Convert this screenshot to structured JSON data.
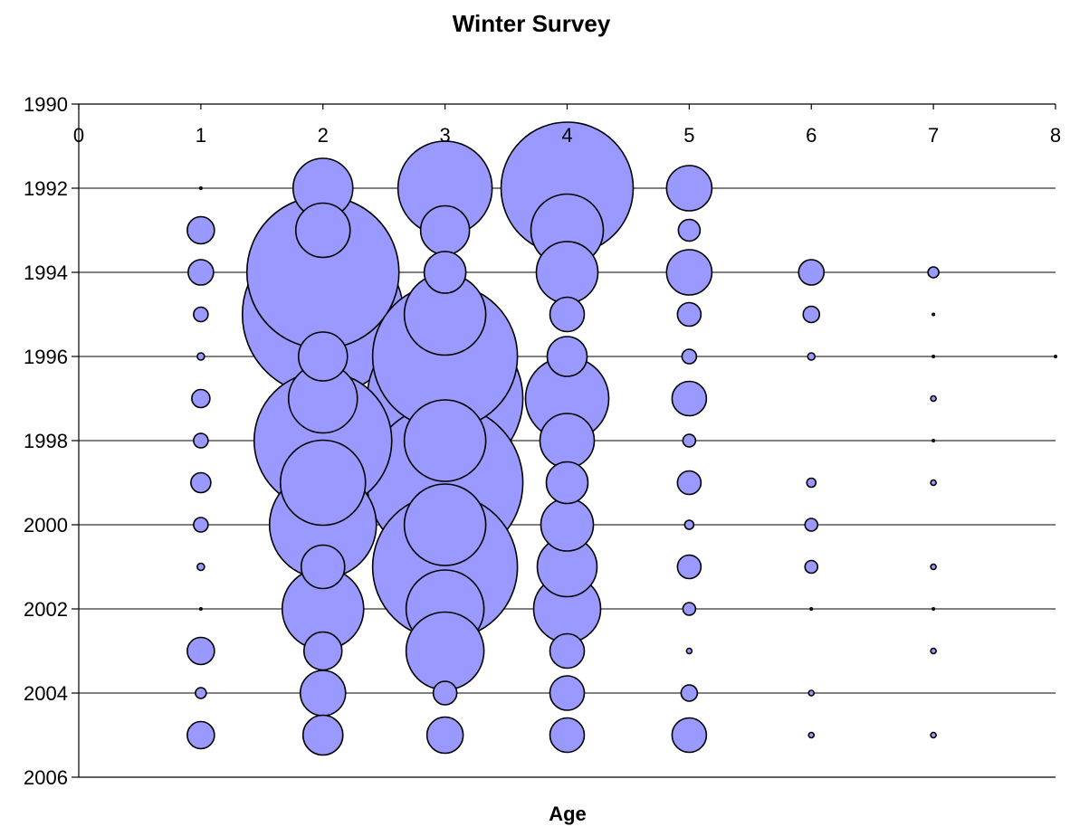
{
  "chart_data": {
    "type": "bubble",
    "title": "Winter Survey",
    "xlabel": "Age",
    "ylabel": "",
    "xlim": [
      0,
      8
    ],
    "ylim": [
      1990,
      2006
    ],
    "y_reversed": true,
    "x_ticks": [
      0,
      1,
      2,
      3,
      4,
      5,
      6,
      7,
      8
    ],
    "y_ticks": [
      1990,
      1992,
      1994,
      1996,
      1998,
      2000,
      2002,
      2004,
      2006
    ],
    "x_tick_position": "top",
    "grid": "horizontal",
    "legend": "none",
    "bubble_color": "#9999ff",
    "bubble_stroke": "#000000",
    "series": [
      {
        "x": [
          1,
          1,
          1,
          1,
          1,
          1,
          1,
          1,
          1,
          1,
          1,
          1,
          1,
          1
        ],
        "y": [
          1992,
          1993,
          1994,
          1995,
          1996,
          1997,
          1998,
          1999,
          2000,
          2001,
          2002,
          2003,
          2004,
          2005
        ],
        "size": [
          1,
          15,
          14,
          8,
          4,
          10,
          8,
          11,
          8,
          4,
          1,
          15,
          6,
          15
        ]
      },
      {
        "x": [
          2,
          2,
          2,
          2,
          2,
          2,
          2,
          2,
          2,
          2,
          2,
          2,
          2,
          2
        ],
        "y": [
          1992,
          1993,
          1994,
          1995,
          1996,
          1997,
          1998,
          1999,
          2000,
          2001,
          2002,
          2003,
          2004,
          2005
        ],
        "size": [
          33,
          30,
          84,
          89,
          27,
          38,
          76,
          47,
          59,
          24,
          45,
          21,
          25,
          22
        ]
      },
      {
        "x": [
          3,
          3,
          3,
          3,
          3,
          3,
          3,
          3,
          3,
          3,
          3,
          3,
          3,
          3
        ],
        "y": [
          1992,
          1993,
          1994,
          1995,
          1996,
          1997,
          1998,
          1999,
          2000,
          2001,
          2002,
          2003,
          2004,
          2005
        ],
        "size": [
          52,
          27,
          23,
          45,
          80,
          86,
          45,
          86,
          45,
          80,
          43,
          43,
          13,
          20
        ]
      },
      {
        "x": [
          4,
          4,
          4,
          4,
          4,
          4,
          4,
          4,
          4,
          4,
          4,
          4,
          4,
          4
        ],
        "y": [
          1992,
          1993,
          1994,
          1995,
          1996,
          1997,
          1998,
          1999,
          2000,
          2001,
          2002,
          2003,
          2004,
          2005
        ],
        "size": [
          73,
          40,
          34,
          19,
          22,
          46,
          30,
          23,
          29,
          33,
          37,
          19,
          19,
          19
        ]
      },
      {
        "x": [
          5,
          5,
          5,
          5,
          5,
          5,
          5,
          5,
          5,
          5,
          5,
          5,
          5,
          5
        ],
        "y": [
          1992,
          1993,
          1994,
          1995,
          1996,
          1997,
          1998,
          1999,
          2000,
          2001,
          2002,
          2003,
          2004,
          2005
        ],
        "size": [
          25,
          12,
          25,
          13,
          8,
          19,
          7,
          13,
          5,
          13,
          7,
          3,
          9,
          19
        ]
      },
      {
        "x": [
          6,
          6,
          6,
          6,
          6,
          6,
          6,
          6,
          6
        ],
        "y": [
          1994,
          1995,
          1996,
          1999,
          2000,
          2001,
          2002,
          2004,
          2005
        ],
        "size": [
          14,
          9,
          4,
          5,
          7,
          7,
          1,
          3,
          3
        ]
      },
      {
        "x": [
          7,
          7,
          7,
          7,
          7,
          7,
          7,
          7,
          7,
          7
        ],
        "y": [
          1994,
          1995,
          1996,
          1997,
          1998,
          1999,
          2001,
          2002,
          2003,
          2005
        ],
        "size": [
          6,
          1,
          1,
          3,
          1,
          3,
          3,
          0,
          3,
          3
        ]
      },
      {
        "x": [
          8
        ],
        "y": [
          1996
        ],
        "size": [
          1
        ]
      }
    ]
  }
}
